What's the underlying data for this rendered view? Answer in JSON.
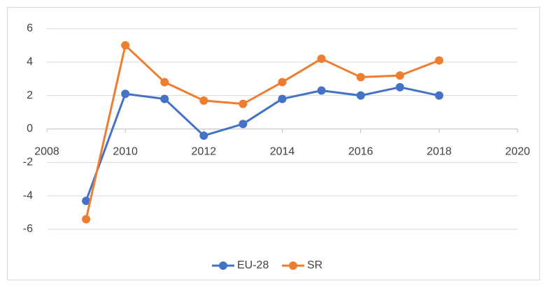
{
  "chart_data": {
    "type": "line",
    "x": [
      2009,
      2010,
      2011,
      2012,
      2013,
      2014,
      2015,
      2016,
      2017,
      2018
    ],
    "series": [
      {
        "name": "EU-28",
        "color": "#4472c4",
        "values": [
          -4.3,
          2.1,
          1.8,
          -0.4,
          0.3,
          1.8,
          2.3,
          2.0,
          2.5,
          2.0
        ]
      },
      {
        "name": "SR",
        "color": "#ed7d31",
        "values": [
          -5.4,
          5.0,
          2.8,
          1.7,
          1.5,
          2.8,
          4.2,
          3.1,
          3.2,
          4.1
        ]
      }
    ],
    "xlim": [
      2008,
      2020
    ],
    "xticks": [
      2008,
      2010,
      2012,
      2014,
      2016,
      2018,
      2020
    ],
    "ylim": [
      -6,
      6
    ],
    "yticks": [
      -6,
      -4,
      -2,
      0,
      2,
      4,
      6
    ],
    "grid": true,
    "legend": "bottom"
  }
}
